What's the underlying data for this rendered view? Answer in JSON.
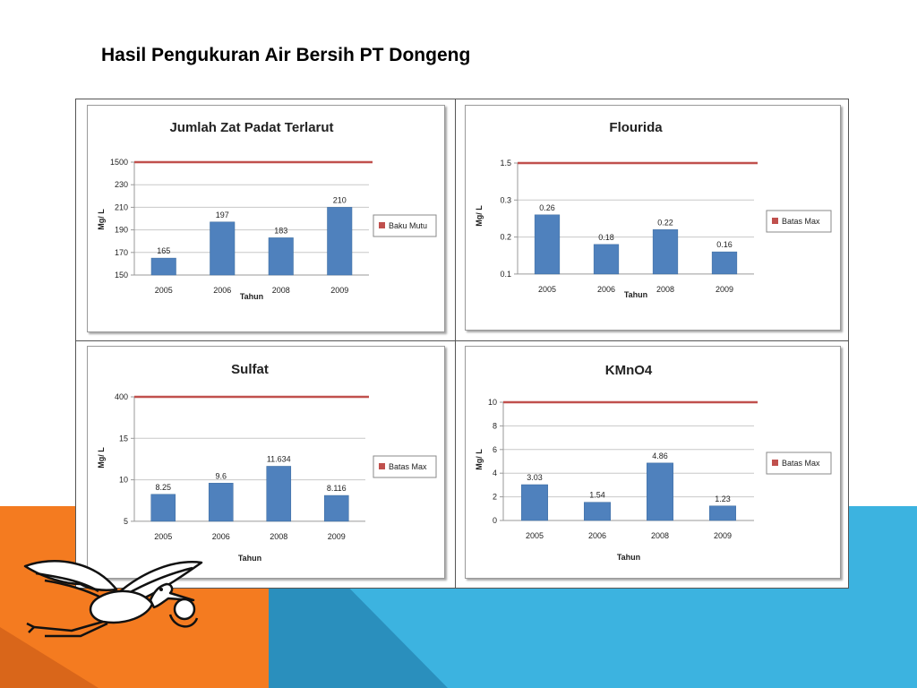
{
  "slide": {
    "title": "Hasil Pengukuran Air Bersih PT Dongeng"
  },
  "colors": {
    "bar": "#4f81bd",
    "limit_line": "#c0504d",
    "orange": "#f47b20",
    "blue": "#3cb3e0",
    "blue_dark": "#2a8fbd"
  },
  "icons": [
    "stork-logo-icon"
  ],
  "chart_data": [
    {
      "type": "bar",
      "title": "Jumlah Zat Padat Terlarut",
      "xlabel": "Tahun",
      "ylabel": "Mg/ L",
      "categories": [
        "2005",
        "2006",
        "2008",
        "2009"
      ],
      "values": [
        165,
        197,
        183,
        210
      ],
      "value_labels": [
        "165",
        "197",
        "183",
        "210"
      ],
      "y_ticks": [
        "1500",
        "230",
        "210",
        "190",
        "170",
        "150"
      ],
      "limit_line": 1500,
      "legend": "Baku Mutu",
      "legend_position": "right",
      "grid": true
    },
    {
      "type": "bar",
      "title": "Flourida",
      "xlabel": "Tahun",
      "ylabel": "Mg/ L",
      "categories": [
        "2005",
        "2006",
        "2008",
        "2009"
      ],
      "values": [
        0.26,
        0.18,
        0.22,
        0.16
      ],
      "value_labels": [
        "0.26",
        "0.18",
        "0.22",
        "0.16"
      ],
      "y_ticks": [
        "1.5",
        "0.3",
        "0.2",
        "0.1"
      ],
      "limit_line": 1.5,
      "legend": "Batas Max",
      "legend_position": "right",
      "grid": true
    },
    {
      "type": "bar",
      "title": "Sulfat",
      "xlabel": "Tahun",
      "ylabel": "Mg/ L",
      "categories": [
        "2005",
        "2006",
        "2008",
        "2009"
      ],
      "values": [
        8.25,
        9.6,
        11.634,
        8.116
      ],
      "value_labels": [
        "8.25",
        "9.6",
        "11.634",
        "8.116"
      ],
      "y_ticks": [
        "400",
        "15",
        "10",
        "5"
      ],
      "limit_line": 400,
      "legend": "Batas Max",
      "legend_position": "right",
      "grid": true
    },
    {
      "type": "bar",
      "title": "KMnO4",
      "xlabel": "Tahun",
      "ylabel": "Mg/ L",
      "categories": [
        "2005",
        "2006",
        "2008",
        "2009"
      ],
      "values": [
        3.03,
        1.54,
        4.86,
        1.23
      ],
      "value_labels": [
        "3.03",
        "1.54",
        "4.86",
        "1.23"
      ],
      "y_ticks": [
        "10",
        "8",
        "6",
        "4",
        "2",
        "0"
      ],
      "limit_line": 10,
      "legend": "Batas Max",
      "legend_position": "right",
      "grid": true
    }
  ]
}
